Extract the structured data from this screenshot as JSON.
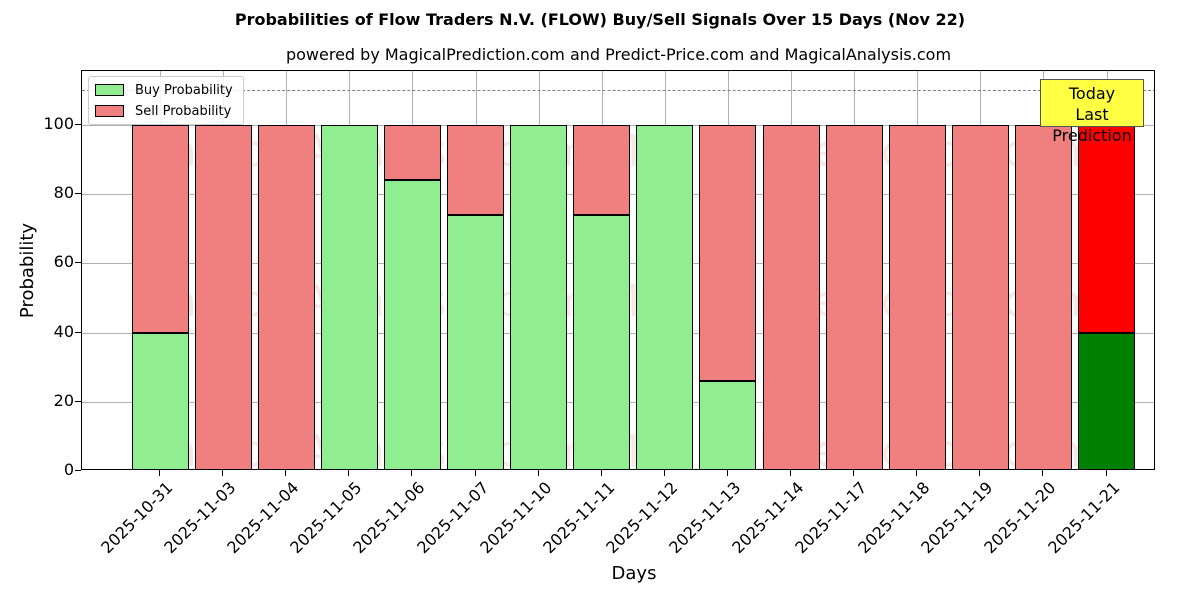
{
  "title": "Probabilities of Flow Traders N.V. (FLOW) Buy/Sell Signals Over 15 Days (Nov 22)",
  "subtitle": "powered by MagicalPrediction.com and Predict-Price.com and MagicalAnalysis.com",
  "legend": {
    "buy": "Buy Probability",
    "sell": "Sell Probability"
  },
  "annotation": {
    "line1": "Today",
    "line2": "Last Prediction"
  },
  "axes": {
    "xlabel": "Days",
    "ylabel": "Probability"
  },
  "yticks": [
    "0",
    "20",
    "40",
    "60",
    "80",
    "100"
  ],
  "watermarks": [
    "MagicalAnalysis.com",
    "MagicalPrediction.com"
  ],
  "colors": {
    "buy": "#90ee90",
    "sell": "#f08080",
    "today_buy": "#008000",
    "today_sell": "#ff0000",
    "annotation_bg": "#ffff44"
  },
  "chart_data": {
    "type": "bar",
    "stacked": true,
    "title": "Probabilities of Flow Traders N.V. (FLOW) Buy/Sell Signals Over 15 Days (Nov 22)",
    "subtitle": "powered by MagicalPrediction.com and Predict-Price.com and MagicalAnalysis.com",
    "xlabel": "Days",
    "ylabel": "Probability",
    "ylim": [
      0,
      115
    ],
    "yticks": [
      0,
      20,
      40,
      60,
      80,
      100
    ],
    "grid": true,
    "legend_position": "upper left",
    "reference_line": {
      "y": 110,
      "style": "dashed",
      "color": "#808080"
    },
    "categories": [
      "2025-10-31",
      "2025-11-03",
      "2025-11-04",
      "2025-11-05",
      "2025-11-06",
      "2025-11-07",
      "2025-11-10",
      "2025-11-11",
      "2025-11-12",
      "2025-11-13",
      "2025-11-14",
      "2025-11-17",
      "2025-11-18",
      "2025-11-19",
      "2025-11-20",
      "2025-11-21"
    ],
    "series": [
      {
        "name": "Buy Probability",
        "values": [
          40,
          0,
          0,
          100,
          84,
          74,
          100,
          74,
          100,
          26,
          0,
          0,
          0,
          0,
          0,
          40
        ]
      },
      {
        "name": "Sell Probability",
        "values": [
          60,
          100,
          100,
          0,
          16,
          26,
          0,
          26,
          0,
          74,
          100,
          100,
          100,
          100,
          100,
          60
        ]
      }
    ],
    "annotations": [
      {
        "text": "Today\nLast Prediction",
        "x": "2025-11-21"
      }
    ]
  }
}
